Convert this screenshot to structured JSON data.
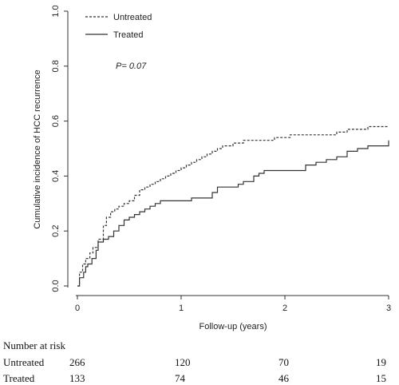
{
  "chart_data": {
    "type": "line",
    "xlabel": "Follow-up (years)",
    "ylabel": "Cumulative incidence of HCC recurrence",
    "xlim": [
      0,
      3
    ],
    "ylim": [
      0,
      1.0
    ],
    "x_ticks": [
      "0",
      "1",
      "2",
      "3"
    ],
    "y_ticks": [
      "0.0",
      "0.2",
      "0.4",
      "0.6",
      "0.8",
      "1.0"
    ],
    "annotation": "P= 0.07",
    "legend_position": "top-left",
    "grid": false,
    "series": [
      {
        "name": "Untreated",
        "style": "dashed",
        "color": "#333333",
        "x": [
          0.0,
          0.02,
          0.05,
          0.08,
          0.12,
          0.15,
          0.2,
          0.25,
          0.28,
          0.32,
          0.36,
          0.4,
          0.45,
          0.5,
          0.55,
          0.6,
          0.65,
          0.7,
          0.75,
          0.8,
          0.85,
          0.9,
          0.95,
          1.0,
          1.05,
          1.1,
          1.15,
          1.2,
          1.25,
          1.3,
          1.35,
          1.4,
          1.45,
          1.5,
          1.55,
          1.6,
          1.7,
          1.8,
          1.9,
          2.0,
          2.05,
          2.1,
          2.2,
          2.3,
          2.4,
          2.5,
          2.55,
          2.6,
          2.7,
          2.8,
          3.0
        ],
        "y": [
          0.0,
          0.05,
          0.08,
          0.1,
          0.12,
          0.14,
          0.17,
          0.22,
          0.25,
          0.27,
          0.28,
          0.29,
          0.3,
          0.31,
          0.33,
          0.35,
          0.36,
          0.37,
          0.38,
          0.39,
          0.4,
          0.41,
          0.42,
          0.43,
          0.44,
          0.45,
          0.46,
          0.47,
          0.48,
          0.49,
          0.5,
          0.51,
          0.51,
          0.52,
          0.52,
          0.53,
          0.53,
          0.53,
          0.54,
          0.54,
          0.55,
          0.55,
          0.55,
          0.55,
          0.55,
          0.56,
          0.56,
          0.57,
          0.57,
          0.58,
          0.58
        ]
      },
      {
        "name": "Treated",
        "style": "solid",
        "color": "#333333",
        "x": [
          0.0,
          0.02,
          0.06,
          0.08,
          0.1,
          0.14,
          0.18,
          0.2,
          0.25,
          0.3,
          0.35,
          0.4,
          0.45,
          0.5,
          0.55,
          0.6,
          0.65,
          0.7,
          0.75,
          0.8,
          0.85,
          0.9,
          1.0,
          1.1,
          1.2,
          1.3,
          1.35,
          1.4,
          1.5,
          1.55,
          1.6,
          1.7,
          1.75,
          1.8,
          1.9,
          2.0,
          2.1,
          2.2,
          2.3,
          2.4,
          2.5,
          2.6,
          2.7,
          2.75,
          2.8,
          3.0
        ],
        "y": [
          0.0,
          0.03,
          0.05,
          0.07,
          0.08,
          0.1,
          0.13,
          0.16,
          0.17,
          0.18,
          0.2,
          0.22,
          0.24,
          0.25,
          0.26,
          0.27,
          0.28,
          0.29,
          0.3,
          0.31,
          0.31,
          0.31,
          0.31,
          0.32,
          0.32,
          0.34,
          0.36,
          0.36,
          0.36,
          0.37,
          0.38,
          0.4,
          0.41,
          0.42,
          0.42,
          0.42,
          0.42,
          0.44,
          0.45,
          0.46,
          0.47,
          0.49,
          0.5,
          0.5,
          0.51,
          0.53
        ]
      }
    ]
  },
  "risk_table": {
    "title": "Number at risk",
    "rows": [
      {
        "label": "Untreated",
        "values": [
          "266",
          "120",
          "70",
          "19"
        ]
      },
      {
        "label": "Treated",
        "values": [
          "133",
          "74",
          "46",
          "15"
        ]
      }
    ]
  }
}
